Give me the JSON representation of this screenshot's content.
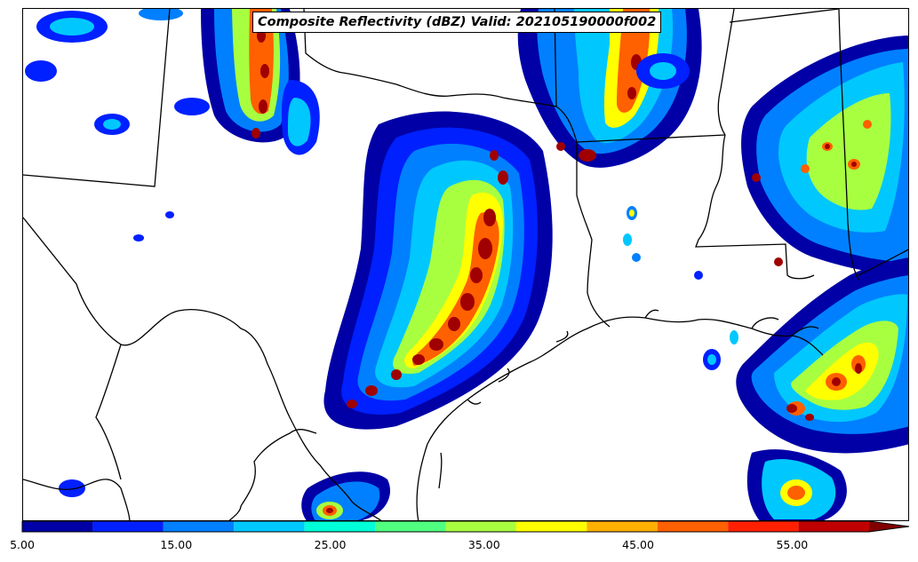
{
  "title": "Composite Reflectivity (dBZ) Valid: 202105190000f002",
  "colorbar": {
    "tick_labels": [
      "5.00",
      "15.00",
      "25.00",
      "35.00",
      "45.00",
      "55.00"
    ],
    "tick_values": [
      5,
      15,
      25,
      35,
      45,
      55
    ],
    "min": 5,
    "max": 60,
    "colors": [
      "#0000a6",
      "#0020ff",
      "#0080ff",
      "#00c8ff",
      "#00ffd8",
      "#50ff80",
      "#a8ff40",
      "#ffff00",
      "#ffb000",
      "#ff6000",
      "#ff2000",
      "#c00000"
    ],
    "extend": "max"
  },
  "colors": {
    "very_light": "#0000a6",
    "light": "#0020ff",
    "moderate": "#00c8ff",
    "heavy": "#ffff00",
    "intense": "#ff2000",
    "extreme": "#a00000"
  }
}
